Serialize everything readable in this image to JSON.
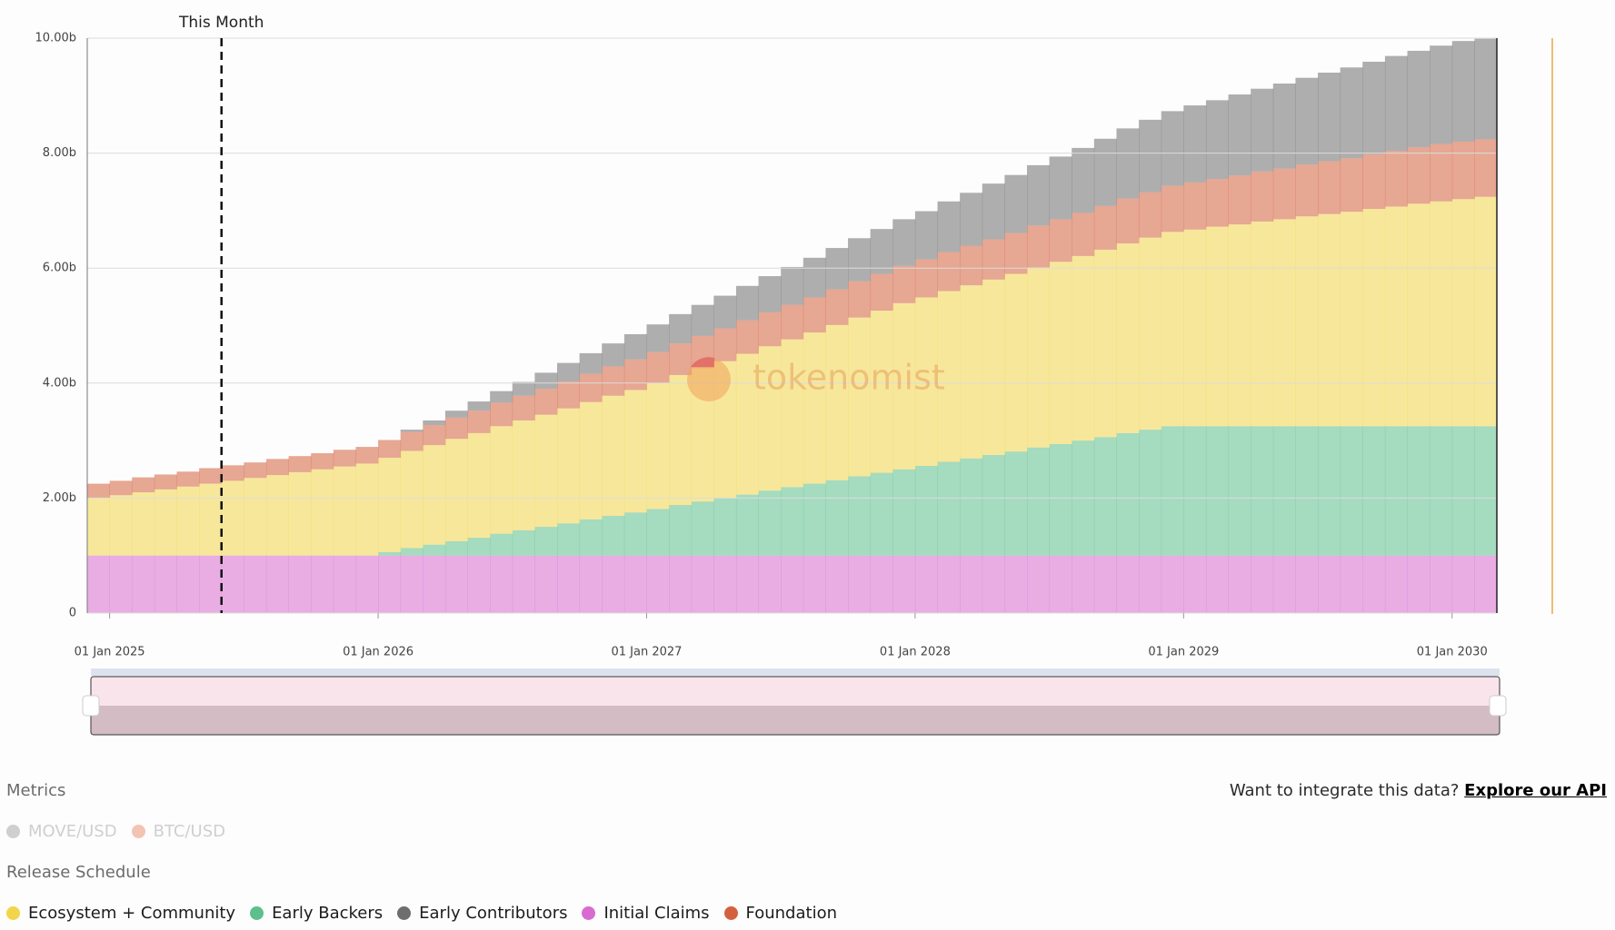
{
  "chart_data": {
    "type": "stacked-step-area",
    "annotation": {
      "label": "This Month",
      "x": "2025-06-01"
    },
    "watermark": "tokenomist",
    "x": [
      "2024-12-01",
      "2025-01-01",
      "2025-02-01",
      "2025-03-01",
      "2025-04-01",
      "2025-05-01",
      "2025-06-01",
      "2025-07-01",
      "2025-08-01",
      "2025-09-01",
      "2025-10-01",
      "2025-11-01",
      "2025-12-01",
      "2026-01-01",
      "2026-02-01",
      "2026-03-01",
      "2026-04-01",
      "2026-05-01",
      "2026-06-01",
      "2026-07-01",
      "2026-08-01",
      "2026-09-01",
      "2026-10-01",
      "2026-11-01",
      "2026-12-01",
      "2027-01-01",
      "2027-02-01",
      "2027-03-01",
      "2027-04-01",
      "2027-05-01",
      "2027-06-01",
      "2027-07-01",
      "2027-08-01",
      "2027-09-01",
      "2027-10-01",
      "2027-11-01",
      "2027-12-01",
      "2028-01-01",
      "2028-02-01",
      "2028-03-01",
      "2028-04-01",
      "2028-05-01",
      "2028-06-01",
      "2028-07-01",
      "2028-08-01",
      "2028-09-01",
      "2028-10-01",
      "2028-11-01",
      "2028-12-01",
      "2029-01-01",
      "2029-02-01",
      "2029-03-01",
      "2029-04-01",
      "2029-05-01",
      "2029-06-01",
      "2029-07-01",
      "2029-08-01",
      "2029-09-01",
      "2029-10-01",
      "2029-11-01",
      "2029-12-01",
      "2030-01-01",
      "2030-02-01"
    ],
    "xlim": [
      "2024-12-01",
      "2030-03-01"
    ],
    "xticks": [
      {
        "value": "2025-01-01",
        "label": "01 Jan 2025"
      },
      {
        "value": "2026-01-01",
        "label": "01 Jan 2026"
      },
      {
        "value": "2027-01-01",
        "label": "01 Jan 2027"
      },
      {
        "value": "2028-01-01",
        "label": "01 Jan 2028"
      },
      {
        "value": "2029-01-01",
        "label": "01 Jan 2029"
      },
      {
        "value": "2030-01-01",
        "label": "01 Jan 2030"
      }
    ],
    "ylim": [
      0,
      10
    ],
    "yticks": [
      0,
      {
        "value": 2,
        "label": "2.00b"
      },
      {
        "value": 4,
        "label": "4.00b"
      },
      {
        "value": 6,
        "label": "6.00b"
      },
      {
        "value": 8,
        "label": "8.00b"
      },
      {
        "value": 10,
        "label": "10.00b"
      }
    ],
    "grid": true,
    "stack_order": [
      3,
      1,
      0,
      4,
      2
    ],
    "series": [
      {
        "name": "Ecosystem + Community",
        "color": "#f2d54a",
        "values": [
          1.0,
          1.05,
          1.1,
          1.15,
          1.2,
          1.25,
          1.3,
          1.35,
          1.4,
          1.45,
          1.5,
          1.55,
          1.6,
          1.64,
          1.69,
          1.73,
          1.78,
          1.82,
          1.87,
          1.91,
          1.95,
          2.0,
          2.04,
          2.09,
          2.13,
          2.19,
          2.26,
          2.32,
          2.38,
          2.45,
          2.51,
          2.57,
          2.63,
          2.7,
          2.76,
          2.82,
          2.89,
          2.93,
          2.97,
          3.01,
          3.05,
          3.09,
          3.13,
          3.17,
          3.21,
          3.26,
          3.3,
          3.34,
          3.38,
          3.42,
          3.47,
          3.51,
          3.56,
          3.6,
          3.65,
          3.69,
          3.73,
          3.78,
          3.82,
          3.87,
          3.91,
          3.95,
          3.99
        ]
      },
      {
        "name": "Early Backers",
        "color": "#5dbf8c",
        "values": [
          0,
          0,
          0,
          0,
          0,
          0,
          0,
          0,
          0,
          0,
          0,
          0,
          0,
          0.06,
          0.13,
          0.19,
          0.25,
          0.31,
          0.38,
          0.44,
          0.5,
          0.56,
          0.63,
          0.69,
          0.75,
          0.81,
          0.88,
          0.94,
          1.0,
          1.06,
          1.13,
          1.19,
          1.25,
          1.31,
          1.38,
          1.44,
          1.5,
          1.56,
          1.63,
          1.69,
          1.75,
          1.81,
          1.88,
          1.94,
          2.0,
          2.06,
          2.13,
          2.19,
          2.25,
          2.25,
          2.25,
          2.25,
          2.25,
          2.25,
          2.25,
          2.25,
          2.25,
          2.25,
          2.25,
          2.25,
          2.25,
          2.25,
          2.25
        ]
      },
      {
        "name": "Early Contributors",
        "color": "#6e6e6e",
        "values": [
          0,
          0,
          0,
          0,
          0,
          0,
          0,
          0,
          0,
          0,
          0,
          0,
          0,
          0,
          0.04,
          0.08,
          0.12,
          0.16,
          0.2,
          0.24,
          0.28,
          0.32,
          0.36,
          0.4,
          0.44,
          0.48,
          0.51,
          0.54,
          0.57,
          0.6,
          0.63,
          0.66,
          0.69,
          0.72,
          0.75,
          0.78,
          0.81,
          0.84,
          0.88,
          0.92,
          0.97,
          1.01,
          1.05,
          1.09,
          1.13,
          1.17,
          1.22,
          1.26,
          1.3,
          1.34,
          1.37,
          1.41,
          1.44,
          1.48,
          1.51,
          1.54,
          1.58,
          1.61,
          1.65,
          1.68,
          1.71,
          1.75,
          1.75
        ]
      },
      {
        "name": "Initial Claims",
        "color": "#d96bd0",
        "values": [
          1,
          1,
          1,
          1,
          1,
          1,
          1,
          1,
          1,
          1,
          1,
          1,
          1,
          1,
          1,
          1,
          1,
          1,
          1,
          1,
          1,
          1,
          1,
          1,
          1,
          1,
          1,
          1,
          1,
          1,
          1,
          1,
          1,
          1,
          1,
          1,
          1,
          1,
          1,
          1,
          1,
          1,
          1,
          1,
          1,
          1,
          1,
          1,
          1,
          1,
          1,
          1,
          1,
          1,
          1,
          1,
          1,
          1,
          1,
          1,
          1,
          1,
          1
        ]
      },
      {
        "name": "Foundation",
        "color": "#d4613d",
        "values": [
          0.25,
          0.25,
          0.26,
          0.26,
          0.26,
          0.27,
          0.27,
          0.27,
          0.28,
          0.28,
          0.28,
          0.29,
          0.29,
          0.31,
          0.33,
          0.35,
          0.37,
          0.39,
          0.41,
          0.43,
          0.45,
          0.47,
          0.49,
          0.51,
          0.53,
          0.54,
          0.55,
          0.56,
          0.57,
          0.58,
          0.59,
          0.6,
          0.61,
          0.62,
          0.63,
          0.64,
          0.65,
          0.66,
          0.68,
          0.69,
          0.7,
          0.71,
          0.73,
          0.74,
          0.75,
          0.76,
          0.78,
          0.79,
          0.8,
          0.82,
          0.83,
          0.85,
          0.87,
          0.88,
          0.9,
          0.92,
          0.93,
          0.95,
          0.97,
          0.98,
          1.0,
          1.0,
          1.0
        ]
      }
    ]
  },
  "metrics": {
    "title": "Metrics",
    "items": [
      {
        "name": "MOVE/USD",
        "color": "#cfcfcf"
      },
      {
        "name": "BTC/USD",
        "color": "#f3c3b3"
      }
    ]
  },
  "legend_title": "Release Schedule",
  "api": {
    "text": "Want to integrate this data?",
    "link": "Explore our API"
  }
}
